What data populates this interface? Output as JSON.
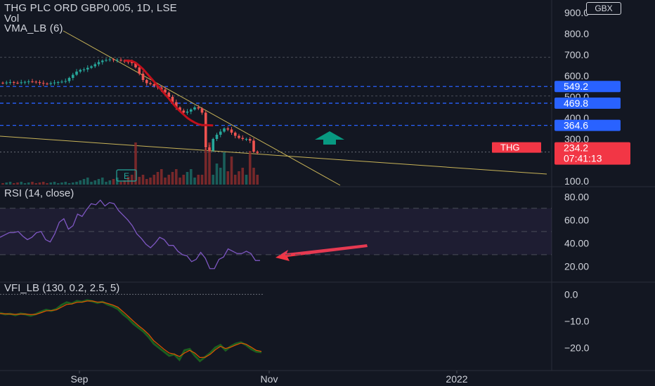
{
  "header": {
    "symbol_line": "THG PLC ORD GBP0.005, 1D, LSE",
    "volume_label": "Vol",
    "vma_label": "VMA_LB (6)",
    "currency_button": "GBX"
  },
  "rsi_pane": {
    "title": "RSI (14, close)"
  },
  "vfi_pane": {
    "title": "VFI_LB (130, 0.2, 2.5, 5)"
  },
  "time_axis": {
    "labels": [
      "Sep",
      "Nov",
      "2022"
    ]
  },
  "colors": {
    "background": "#131722",
    "up": "#26a69a",
    "down": "#ef5350",
    "vma": "#c0101c",
    "rsi": "#7e57c2",
    "vfi_main": "#1b5e20",
    "vfi_signal": "#e65100",
    "dashed_level": "#2962ff",
    "trendline": "#c9b458",
    "annotation_arrow_green": "#089981",
    "annotation_arrow_red": "#f23645",
    "current_price_badge": "#f23645"
  },
  "chart_data": [
    {
      "type": "candlestick",
      "pane": "price",
      "price_scale": [
        "900.0",
        "800.0",
        "700.0",
        "600.0",
        "500.0",
        "400.0",
        "300.0",
        "100.0"
      ],
      "ylim": [
        100,
        900
      ],
      "price_levels": [
        {
          "label": "549.2",
          "value": 549.2
        },
        {
          "label": "469.8",
          "value": 469.8
        },
        {
          "label": "364.6",
          "value": 364.6
        }
      ],
      "current_price": {
        "symbol": "THG",
        "price": "234.2",
        "countdown": "07:41:13"
      },
      "earnings_marker": "E",
      "close_series": [
        565,
        568,
        570,
        567,
        566,
        569,
        571,
        573,
        572,
        570,
        566,
        563,
        561,
        565,
        568,
        570,
        572,
        575,
        590,
        605,
        620,
        628,
        630,
        638,
        645,
        655,
        665,
        672,
        675,
        678,
        675,
        676,
        672,
        668,
        665,
        660,
        640,
        610,
        580,
        565,
        560,
        552,
        545,
        535,
        520,
        500,
        475,
        450,
        435,
        425,
        430,
        440,
        450,
        445,
        425,
        260,
        245,
        300,
        320,
        335,
        350,
        345,
        330,
        315,
        305,
        300,
        300,
        292,
        240,
        234
      ]
    },
    {
      "type": "line",
      "pane": "rsi",
      "title": "RSI (14, close)",
      "ylim": [
        10,
        85
      ],
      "y_ticks": [
        "80.00",
        "60.00",
        "40.00",
        "20.00"
      ],
      "series": [
        {
          "values": [
            45,
            47,
            49,
            49,
            50,
            46,
            43,
            45,
            49,
            50,
            43,
            41,
            48,
            58,
            61,
            52,
            55,
            65,
            63,
            69,
            74,
            73,
            77,
            72,
            75,
            74,
            68,
            64,
            60,
            55,
            48,
            44,
            39,
            36,
            40,
            45,
            43,
            38,
            38,
            33,
            30,
            29,
            24,
            26,
            32,
            27,
            18,
            18,
            26,
            28,
            35,
            33,
            31,
            31,
            33,
            31,
            25,
            25
          ]
        }
      ]
    },
    {
      "type": "line",
      "pane": "vfi",
      "title": "VFI_LB (130, 0.2, 2.5, 5)",
      "ylim": [
        -27,
        3
      ],
      "y_ticks": [
        "0.0",
        "−10.0",
        "−20.0"
      ],
      "series": [
        {
          "values": [
            -7,
            -7.5,
            -7.3,
            -7.8,
            -7.2,
            -7.5,
            -8,
            -7.4,
            -6.5,
            -5.8,
            -6.2,
            -5.5,
            -4,
            -3,
            -3.5,
            -2.5,
            -2.8,
            -2.2,
            -2.6,
            -3.2,
            -2.8,
            -3.8,
            -4.5,
            -5.5,
            -7.5,
            -9,
            -11,
            -12.5,
            -14,
            -16,
            -18.5,
            -20,
            -21.5,
            -23,
            -22.5,
            -24.5,
            -21,
            -20.5,
            -23,
            -25,
            -23.5,
            -22,
            -20,
            -19,
            -21,
            -19.5,
            -18.5,
            -18,
            -19,
            -20.5,
            -21.5,
            -21.7
          ]
        },
        {
          "values": [
            -7.2,
            -7.3,
            -7.4,
            -7.5,
            -7.4,
            -7.4,
            -7.6,
            -7.5,
            -6.9,
            -6.2,
            -6.1,
            -5.8,
            -4.8,
            -3.8,
            -3.6,
            -3,
            -2.9,
            -2.5,
            -2.5,
            -2.9,
            -2.9,
            -3.4,
            -4,
            -4.8,
            -6.5,
            -8.2,
            -10,
            -11.7,
            -13.2,
            -15,
            -17.4,
            -19,
            -20.6,
            -22,
            -22.4,
            -23.3,
            -22,
            -21,
            -22,
            -23.7,
            -23.6,
            -22.5,
            -20.8,
            -19.5,
            -20.3,
            -19.8,
            -19,
            -18.3,
            -18.7,
            -19.8,
            -21,
            -21.4
          ]
        }
      ]
    }
  ]
}
